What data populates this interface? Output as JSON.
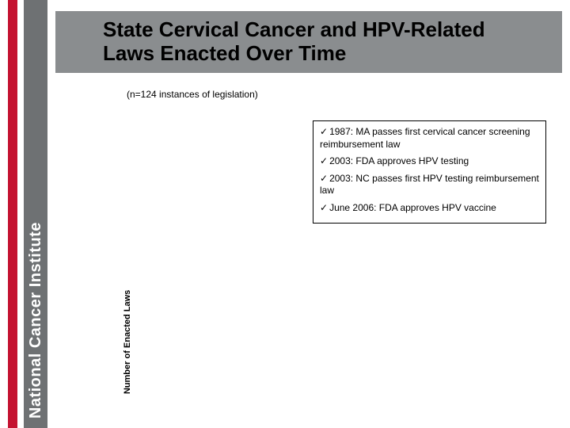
{
  "branding": {
    "institute_text": "National Cancer Institute",
    "red_stripe_color": "#c41230",
    "gray_stripe_color": "#6e7173"
  },
  "header": {
    "title": "State Cervical Cancer and HPV-Related Laws Enacted Over Time",
    "bar_color": "#8a8d8f",
    "title_color": "#000000",
    "title_fontsize": 26
  },
  "subtitle": "(n=124 instances of legislation)",
  "chart": {
    "y_axis_label": "Number of Enacted Laws",
    "y_axis_fontsize": 11,
    "background_color": "#ffffff",
    "plot_present": false
  },
  "milestones": {
    "box_border_color": "#000000",
    "fontsize": 12,
    "check_glyph": "✓",
    "items": [
      "1987: MA passes first cervical cancer screening reimbursement law",
      "2003: FDA approves HPV testing",
      "2003: NC passes first HPV testing reimbursement law",
      "June 2006: FDA approves HPV vaccine"
    ]
  }
}
